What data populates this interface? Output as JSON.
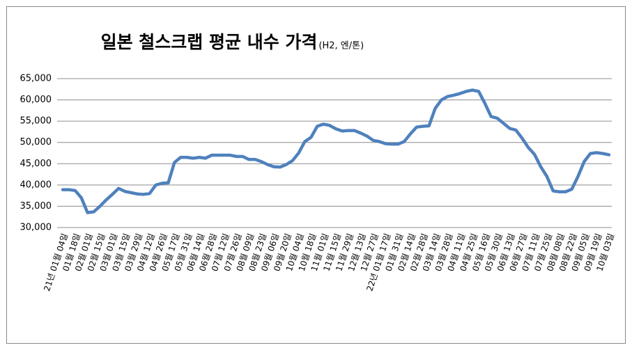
{
  "chart_data": {
    "type": "line",
    "title": "일본 철스크랩 평균 내수 가격",
    "subtitle": "(H2, 엔/톤)",
    "categories": [
      "21년 01월 04일",
      null,
      "01월 18일",
      null,
      "02월 01일",
      null,
      "02월 15일",
      null,
      "03월 01일",
      null,
      "03월 15일",
      null,
      "03월 29일",
      null,
      "04월 12일",
      null,
      "04월 26일",
      null,
      "05월 17일",
      null,
      "05월 31일",
      null,
      "06월 14일",
      null,
      "06월 28일",
      null,
      "07월 12일",
      null,
      "07월 26일",
      null,
      "08월 09일",
      null,
      "08월 23일",
      null,
      "09월 06일",
      null,
      "09월 20일",
      null,
      "10월 04일",
      null,
      "10월 18일",
      null,
      "11월 01일",
      null,
      "11월 15일",
      null,
      "11월 29일",
      null,
      "12월 13일",
      null,
      "12월 27일",
      null,
      "22년 01월 17일",
      null,
      "01월 31일",
      null,
      "02월 14일",
      null,
      "02월 28일",
      null,
      "03월 14일",
      null,
      "03월 28일",
      null,
      "04월 11일",
      null,
      "04월 25일",
      null,
      "05월 16일",
      null,
      "05월 30일",
      null,
      "06월 13일",
      null,
      "06월 27일",
      null,
      "07월 11일",
      null,
      "07월 25일",
      null,
      "08월 08일",
      null,
      "08월 22일",
      null,
      "09월 05일",
      null,
      "09월 19일",
      null,
      "10월 03일"
    ],
    "series": [
      {
        "name": "H2",
        "color": "#4f81bd",
        "values": [
          38900,
          38900,
          38700,
          37000,
          33500,
          33700,
          35000,
          36500,
          37800,
          39200,
          38500,
          38200,
          37900,
          37800,
          38000,
          40000,
          40400,
          40500,
          45300,
          46500,
          46500,
          46300,
          46500,
          46300,
          47000,
          47000,
          47000,
          47000,
          46700,
          46700,
          46000,
          46000,
          45500,
          44800,
          44300,
          44200,
          44800,
          45700,
          47500,
          50200,
          51200,
          53800,
          54300,
          54000,
          53200,
          52700,
          52800,
          52800,
          52200,
          51500,
          50500,
          50200,
          49700,
          49600,
          49600,
          50200,
          52000,
          53600,
          53800,
          53900,
          58000,
          60000,
          60800,
          61100,
          61500,
          62000,
          62300,
          62000,
          59200,
          56100,
          55700,
          54500,
          53300,
          52900,
          51000,
          48800,
          47200,
          44300,
          42000,
          38600,
          38400,
          38400,
          39000,
          42000,
          45500,
          47400,
          47600,
          47400,
          47100
        ]
      }
    ],
    "ylim": [
      30000,
      65000
    ],
    "yticks": [
      {
        "value": 30000,
        "label": "30,000"
      },
      {
        "value": 35000,
        "label": "35,000"
      },
      {
        "value": 40000,
        "label": "40,000"
      },
      {
        "value": 45000,
        "label": "45,000"
      },
      {
        "value": 50000,
        "label": "50,000"
      },
      {
        "value": 55000,
        "label": "55,000"
      },
      {
        "value": 60000,
        "label": "60,000"
      },
      {
        "value": 65000,
        "label": "65,000"
      }
    ],
    "grid": true
  }
}
